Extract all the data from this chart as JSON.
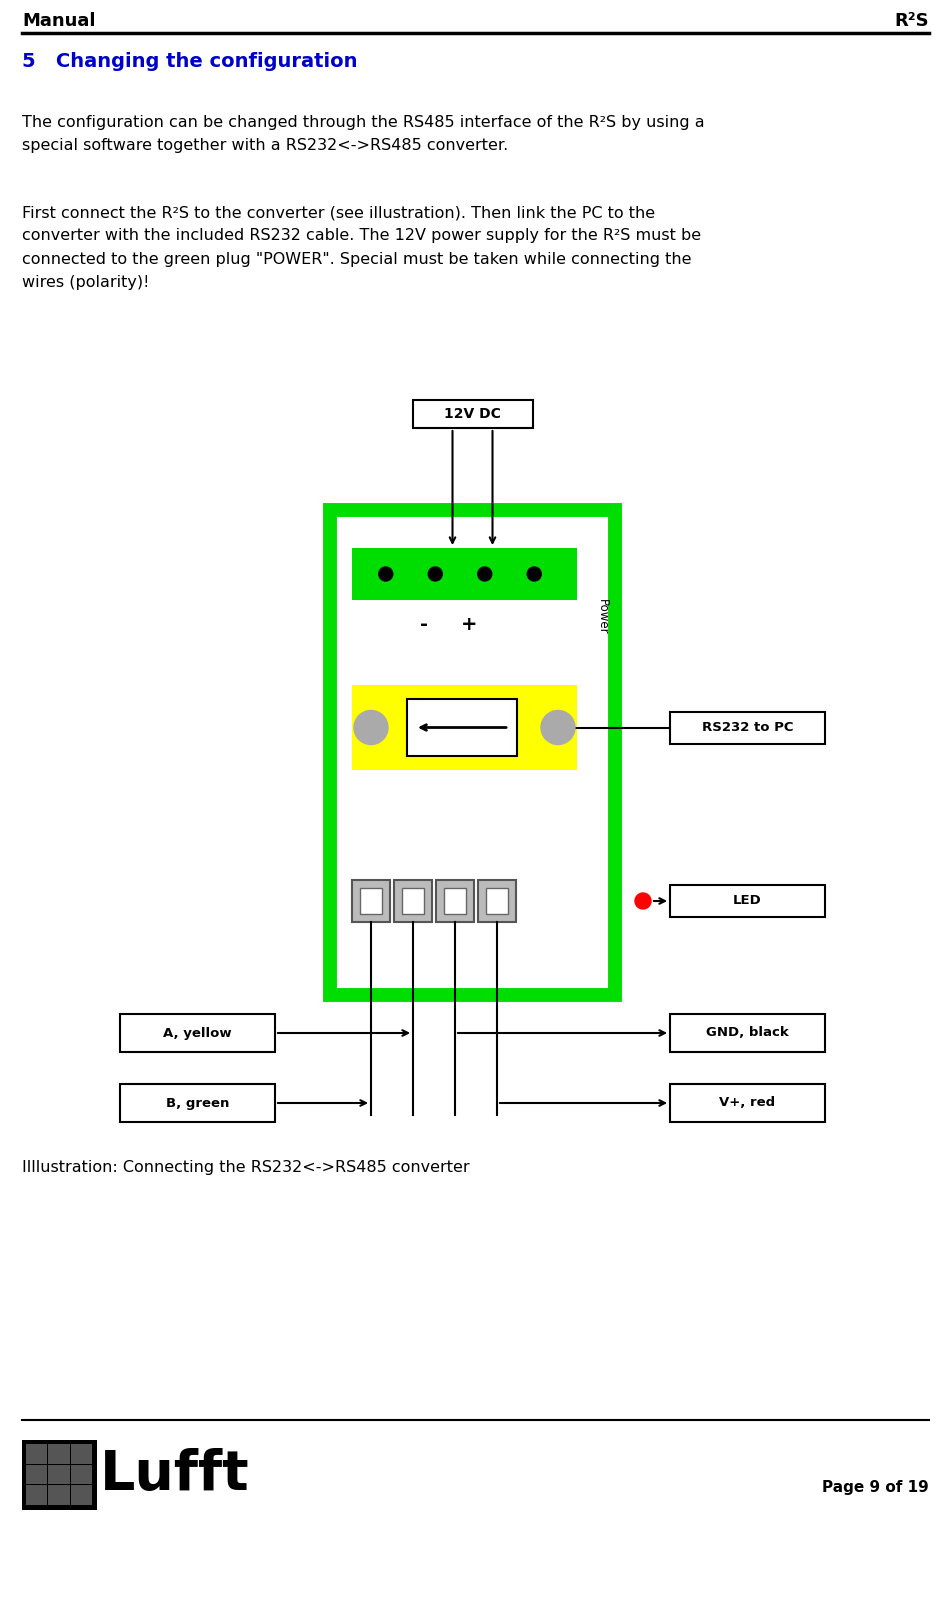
{
  "title_left": "Manual",
  "title_right": "R²S",
  "section_title": "5   Changing the configuration",
  "para1": "The configuration can be changed through the RS485 interface of the R²S by using a\nspecial software together with a RS232<->RS485 converter.",
  "para2": "First connect the R²S to the converter (see illustration). Then link the PC to the\nconverter with the included RS232 cable. The 12V power supply for the R²S must be\nconnected to the green plug \"POWER\". Special must be taken while connecting the\nwires (polarity)!",
  "caption": "Illlustration: Connecting the RS232<->RS485 converter",
  "page_info": "Page 9 of 19",
  "bg_color": "#ffffff",
  "header_line_color": "#000000",
  "section_color": "#0000cc",
  "text_color": "#000000",
  "green_border": "#00dd00",
  "green_fill": "#00dd00",
  "yellow_fill": "#ffff00",
  "gray_fill": "#aaaaaa",
  "gray_tb": "#bbbbbb",
  "label_12vdc": "12V DC",
  "label_rs232": "RS232 to PC",
  "label_led": "LED",
  "label_gnd": "GND, black",
  "label_vplus": "V+, red",
  "label_ayellow": "A, yellow",
  "label_bgreen": "B, green",
  "label_power": "Power",
  "label_minus": "-",
  "label_plus": "+"
}
